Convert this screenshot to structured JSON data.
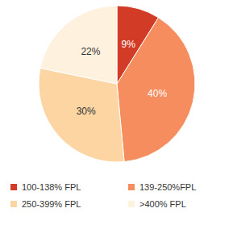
{
  "chart_data": {
    "type": "pie",
    "categories": [
      "100-138% FPL",
      "139-250%FPL",
      "250-399% FPL",
      ">400% FPL"
    ],
    "values": [
      9,
      40,
      30,
      22
    ],
    "value_labels": [
      "9%",
      "40%",
      "30%",
      "22%"
    ],
    "colors": [
      "#d23c26",
      "#f68d5e",
      "#fdd5a3",
      "#fef1de"
    ],
    "data_labels": true,
    "legend": "bottom"
  }
}
